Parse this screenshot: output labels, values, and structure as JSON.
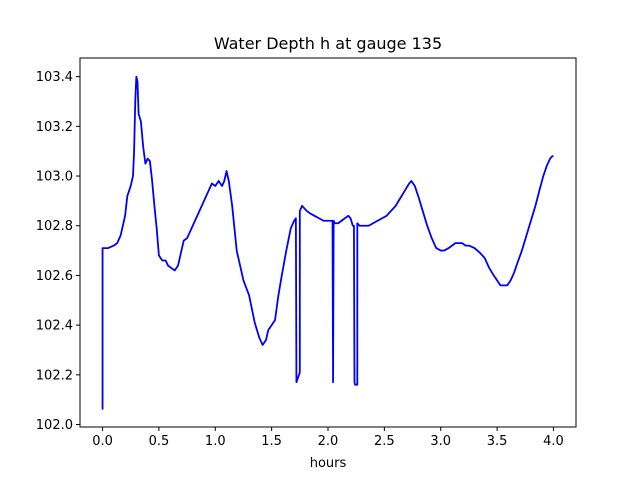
{
  "chart_data": {
    "type": "line",
    "title": "Water Depth h at gauge 135",
    "xlabel": "hours",
    "ylabel": "",
    "xlim": [
      -0.2,
      4.2
    ],
    "ylim": [
      101.99,
      103.475
    ],
    "xticks": [
      0.0,
      0.5,
      1.0,
      1.5,
      2.0,
      2.5,
      3.0,
      3.5,
      4.0
    ],
    "xtick_labels": [
      "0.0",
      "0.5",
      "1.0",
      "1.5",
      "2.0",
      "2.5",
      "3.0",
      "3.5",
      "4.0"
    ],
    "yticks": [
      102.0,
      102.2,
      102.4,
      102.6,
      102.8,
      103.0,
      103.2,
      103.4
    ],
    "ytick_labels": [
      "102.0",
      "102.2",
      "102.4",
      "102.6",
      "102.8",
      "103.0",
      "103.2",
      "103.4"
    ],
    "grid": false,
    "series": [
      {
        "color": "#0000ff",
        "x": [
          0.0,
          0.0,
          0.05,
          0.1,
          0.13,
          0.16,
          0.2,
          0.22,
          0.25,
          0.27,
          0.28,
          0.29,
          0.3,
          0.31,
          0.32,
          0.34,
          0.36,
          0.38,
          0.4,
          0.42,
          0.44,
          0.46,
          0.48,
          0.5,
          0.53,
          0.56,
          0.58,
          0.61,
          0.64,
          0.67,
          0.7,
          0.72,
          0.75,
          0.78,
          0.8,
          0.83,
          0.86,
          0.9,
          0.94,
          0.97,
          1.0,
          1.03,
          1.06,
          1.08,
          1.1,
          1.12,
          1.15,
          1.17,
          1.19,
          1.22,
          1.25,
          1.3,
          1.35,
          1.39,
          1.42,
          1.45,
          1.47,
          1.5,
          1.53,
          1.56,
          1.59,
          1.63,
          1.67,
          1.7,
          1.715,
          1.72,
          1.72,
          1.75,
          1.75,
          1.77,
          1.79,
          1.81,
          1.84,
          1.88,
          1.92,
          1.96,
          2.0,
          2.02,
          2.04,
          2.045,
          2.05,
          2.06,
          2.09,
          2.12,
          2.15,
          2.18,
          2.2,
          2.22,
          2.23,
          2.235,
          2.24,
          2.26,
          2.26,
          2.28,
          2.32,
          2.36,
          2.4,
          2.44,
          2.48,
          2.52,
          2.56,
          2.6,
          2.64,
          2.68,
          2.72,
          2.74,
          2.77,
          2.8,
          2.84,
          2.88,
          2.92,
          2.96,
          3.0,
          3.03,
          3.07,
          3.1,
          3.13,
          3.16,
          3.19,
          3.22,
          3.25,
          3.3,
          3.35,
          3.39,
          3.43,
          3.47,
          3.5,
          3.53,
          3.56,
          3.59,
          3.62,
          3.65,
          3.68,
          3.72,
          3.76,
          3.8,
          3.84,
          3.88,
          3.91,
          3.94,
          3.97,
          3.99,
          4.0
        ],
        "y": [
          102.06,
          102.71,
          102.71,
          102.72,
          102.73,
          102.76,
          102.84,
          102.92,
          102.96,
          103.0,
          103.1,
          103.3,
          103.4,
          103.38,
          103.25,
          103.22,
          103.12,
          103.05,
          103.07,
          103.06,
          102.98,
          102.88,
          102.79,
          102.68,
          102.66,
          102.66,
          102.64,
          102.63,
          102.62,
          102.64,
          102.7,
          102.74,
          102.75,
          102.78,
          102.8,
          102.83,
          102.86,
          102.9,
          102.94,
          102.97,
          102.96,
          102.98,
          102.96,
          102.98,
          103.02,
          102.98,
          102.88,
          102.79,
          102.7,
          102.64,
          102.58,
          102.52,
          102.41,
          102.35,
          102.32,
          102.34,
          102.38,
          102.4,
          102.42,
          102.52,
          102.6,
          102.7,
          102.79,
          102.82,
          102.83,
          102.17,
          102.17,
          102.21,
          102.86,
          102.88,
          102.87,
          102.86,
          102.85,
          102.84,
          102.83,
          102.82,
          102.82,
          102.82,
          102.82,
          102.17,
          102.82,
          102.81,
          102.81,
          102.82,
          102.83,
          102.84,
          102.83,
          102.8,
          102.8,
          102.17,
          102.16,
          102.16,
          102.81,
          102.8,
          102.8,
          102.8,
          102.81,
          102.82,
          102.83,
          102.84,
          102.86,
          102.88,
          102.91,
          102.94,
          102.97,
          102.98,
          102.96,
          102.92,
          102.86,
          102.8,
          102.75,
          102.71,
          102.7,
          102.7,
          102.71,
          102.72,
          102.73,
          102.73,
          102.73,
          102.72,
          102.72,
          102.71,
          102.69,
          102.67,
          102.63,
          102.6,
          102.58,
          102.56,
          102.56,
          102.56,
          102.58,
          102.61,
          102.65,
          102.7,
          102.76,
          102.82,
          102.88,
          102.95,
          103.0,
          103.04,
          103.07,
          103.08,
          103.08
        ]
      }
    ]
  }
}
